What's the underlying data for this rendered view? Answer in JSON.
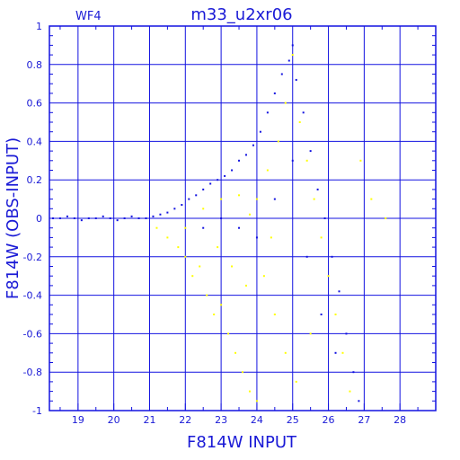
{
  "chart_data": {
    "type": "scatter",
    "title": "m33_u2xr06",
    "subtitle": "WF4",
    "xlabel": "F814W INPUT",
    "ylabel": "F814W (OBS-INPUT)",
    "xlim": [
      18.2,
      29.0
    ],
    "ylim": [
      -1.0,
      1.0
    ],
    "grid": true,
    "x_ticks": [
      {
        "value": 19,
        "label": "19"
      },
      {
        "value": 20,
        "label": "20"
      },
      {
        "value": 21,
        "label": "21"
      },
      {
        "value": 22,
        "label": "22"
      },
      {
        "value": 23,
        "label": "23"
      },
      {
        "value": 24,
        "label": "24"
      },
      {
        "value": 25,
        "label": "25"
      },
      {
        "value": 26,
        "label": "26"
      },
      {
        "value": 27,
        "label": "27"
      },
      {
        "value": 28,
        "label": "28"
      }
    ],
    "y_ticks": [
      {
        "value": 1.0,
        "label": "1"
      },
      {
        "value": 0.8,
        "label": "0.8"
      },
      {
        "value": 0.6,
        "label": "0.6"
      },
      {
        "value": 0.4,
        "label": "0.4"
      },
      {
        "value": 0.2,
        "label": "0.2"
      },
      {
        "value": 0.0,
        "label": "0"
      },
      {
        "value": -0.2,
        "label": "-0.2"
      },
      {
        "value": -0.4,
        "label": "-0.4"
      },
      {
        "value": -0.6,
        "label": "-0.6"
      },
      {
        "value": -0.8,
        "label": "-0.8"
      },
      {
        "value": -1.0,
        "label": "-1"
      }
    ],
    "series": [
      {
        "color": "#1212e0",
        "points": [
          [
            18.3,
            0.0
          ],
          [
            18.5,
            0.0
          ],
          [
            18.7,
            0.01
          ],
          [
            18.9,
            0.0
          ],
          [
            19.1,
            -0.01
          ],
          [
            19.3,
            0.0
          ],
          [
            19.5,
            0.0
          ],
          [
            19.7,
            0.01
          ],
          [
            19.9,
            0.0
          ],
          [
            20.1,
            -0.01
          ],
          [
            20.3,
            0.0
          ],
          [
            20.5,
            0.01
          ],
          [
            20.7,
            0.0
          ],
          [
            20.9,
            0.0
          ],
          [
            21.1,
            0.01
          ],
          [
            21.3,
            0.02
          ],
          [
            21.5,
            0.03
          ],
          [
            21.7,
            0.05
          ],
          [
            21.9,
            0.07
          ],
          [
            22.1,
            0.1
          ],
          [
            22.3,
            0.12
          ],
          [
            22.5,
            0.15
          ],
          [
            22.7,
            0.18
          ],
          [
            22.9,
            0.2
          ],
          [
            23.1,
            0.22
          ],
          [
            23.3,
            0.25
          ],
          [
            23.5,
            0.3
          ],
          [
            23.7,
            0.33
          ],
          [
            23.9,
            0.38
          ],
          [
            24.1,
            0.45
          ],
          [
            24.3,
            0.55
          ],
          [
            24.5,
            0.65
          ],
          [
            24.7,
            0.75
          ],
          [
            24.9,
            0.82
          ],
          [
            25.0,
            0.9
          ],
          [
            25.1,
            0.72
          ],
          [
            25.3,
            0.55
          ],
          [
            25.5,
            0.35
          ],
          [
            25.7,
            0.15
          ],
          [
            25.9,
            0.0
          ],
          [
            26.1,
            -0.2
          ],
          [
            26.3,
            -0.38
          ],
          [
            26.5,
            -0.6
          ],
          [
            26.7,
            -0.8
          ],
          [
            26.85,
            -0.95
          ],
          [
            23.5,
            -0.05
          ],
          [
            24.0,
            -0.1
          ],
          [
            24.5,
            0.1
          ],
          [
            25.0,
            0.3
          ],
          [
            25.4,
            -0.2
          ],
          [
            25.8,
            -0.5
          ],
          [
            26.2,
            -0.7
          ],
          [
            22.5,
            -0.05
          ],
          [
            23.0,
            0.0
          ]
        ]
      },
      {
        "color": "#ffff00",
        "points": [
          [
            21.2,
            -0.05
          ],
          [
            21.5,
            -0.1
          ],
          [
            21.8,
            -0.15
          ],
          [
            22.0,
            -0.2
          ],
          [
            22.2,
            -0.3
          ],
          [
            22.4,
            -0.25
          ],
          [
            22.6,
            -0.4
          ],
          [
            22.8,
            -0.5
          ],
          [
            23.0,
            -0.45
          ],
          [
            23.2,
            -0.6
          ],
          [
            23.4,
            -0.7
          ],
          [
            23.6,
            -0.8
          ],
          [
            23.8,
            -0.9
          ],
          [
            24.0,
            -0.95
          ],
          [
            22.5,
            0.05
          ],
          [
            23.0,
            0.1
          ],
          [
            23.5,
            0.12
          ],
          [
            24.0,
            0.1
          ],
          [
            24.3,
            0.25
          ],
          [
            24.6,
            0.4
          ],
          [
            24.8,
            0.6
          ],
          [
            25.0,
            0.85
          ],
          [
            25.2,
            0.5
          ],
          [
            25.4,
            0.3
          ],
          [
            25.6,
            0.1
          ],
          [
            25.8,
            -0.1
          ],
          [
            26.0,
            -0.3
          ],
          [
            26.2,
            -0.5
          ],
          [
            26.4,
            -0.7
          ],
          [
            26.6,
            -0.9
          ],
          [
            24.2,
            -0.3
          ],
          [
            24.5,
            -0.5
          ],
          [
            24.8,
            -0.7
          ],
          [
            25.1,
            -0.85
          ],
          [
            23.7,
            -0.35
          ],
          [
            23.3,
            -0.25
          ],
          [
            22.9,
            -0.15
          ],
          [
            27.6,
            0.0
          ],
          [
            26.9,
            0.3
          ],
          [
            27.2,
            0.1
          ],
          [
            22.0,
            -0.05
          ],
          [
            23.8,
            0.02
          ],
          [
            24.4,
            -0.1
          ],
          [
            25.5,
            -0.6
          ]
        ]
      }
    ]
  }
}
